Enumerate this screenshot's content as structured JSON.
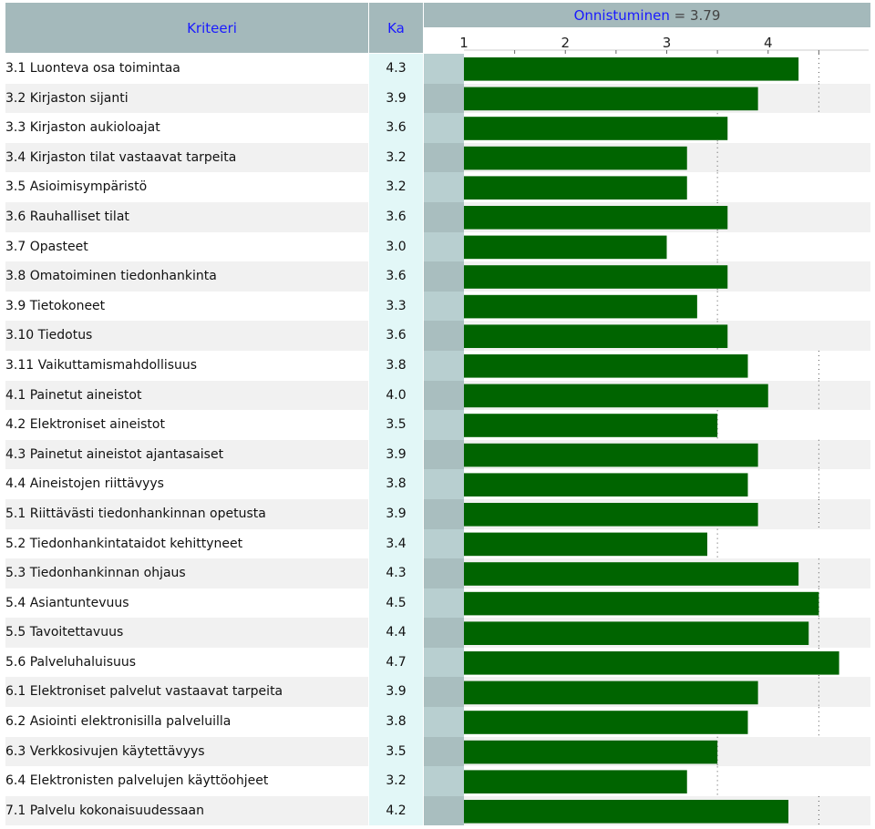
{
  "header": {
    "criteria_label": "Kriteeri",
    "mean_label": "Ka",
    "success_label": "Onnistuminen",
    "success_eq": "=",
    "success_value": "3.79"
  },
  "colors": {
    "header_bg": "#a4b9bb",
    "bar": "#006400",
    "ka_bg": "#e2f7f7"
  },
  "chart_data": {
    "type": "bar",
    "orientation": "horizontal",
    "xlim": [
      1,
      5
    ],
    "ticks": [
      "1",
      "2",
      "3",
      "4"
    ],
    "reference_value": 4.5,
    "categories": [
      "3.1 Luonteva osa toimintaa",
      "3.2 Kirjaston sijanti",
      "3.3 Kirjaston aukioloajat",
      "3.4 Kirjaston tilat vastaavat tarpeita",
      "3.5 Asioimisympäristö",
      "3.6 Rauhalliset tilat",
      "3.7 Opasteet",
      "3.8 Omatoiminen tiedonhankinta",
      "3.9 Tietokoneet",
      "3.10 Tiedotus",
      "3.11 Vaikuttamismahdollisuus",
      "4.1 Painetut aineistot",
      "4.2 Elektroniset aineistot",
      "4.3 Painetut aineistot ajantasaiset",
      "4.4 Aineistojen riittävyys",
      "5.1 Riittävästi tiedonhankinnan opetusta",
      "5.2 Tiedonhankintataidot kehittyneet",
      "5.3 Tiedonhankinnan ohjaus",
      "5.4 Asiantuntevuus",
      "5.5 Tavoitettavuus",
      "5.6 Palveluhaluisuus",
      "6.1 Elektroniset palvelut vastaavat tarpeita",
      "6.2 Asiointi elektronisilla palveluilla",
      "6.3 Verkkosivujen käytettävyys",
      "6.4 Elektronisten palvelujen käyttöohjeet",
      "7.1 Palvelu kokonaisuudessaan"
    ],
    "ka_labels": [
      "4.3",
      "3.9",
      "3.6",
      "3.2",
      "3.2",
      "3.6",
      "3.0",
      "3.6",
      "3.3",
      "3.6",
      "3.8",
      "4.0",
      "3.5",
      "3.9",
      "3.8",
      "3.9",
      "3.4",
      "4.3",
      "4.5",
      "4.4",
      "4.7",
      "3.9",
      "3.8",
      "3.5",
      "3.2",
      "4.2"
    ],
    "values": [
      4.3,
      3.9,
      3.6,
      3.2,
      3.2,
      3.6,
      3.0,
      3.6,
      3.3,
      3.6,
      3.8,
      4.0,
      3.5,
      3.9,
      3.8,
      3.9,
      3.4,
      4.3,
      4.5,
      4.4,
      4.7,
      3.9,
      3.8,
      3.5,
      3.2,
      4.2
    ],
    "ref_marks": [
      4.5,
      4.5,
      3.5,
      3.5,
      3.5,
      3.5,
      3.5,
      3.5,
      3.5,
      3.5,
      4.5,
      4.5,
      3.5,
      4.5,
      4.5,
      4.5,
      3.5,
      4.5,
      4.5,
      4.5,
      4.5,
      4.5,
      4.5,
      3.5,
      3.5,
      4.5
    ]
  }
}
